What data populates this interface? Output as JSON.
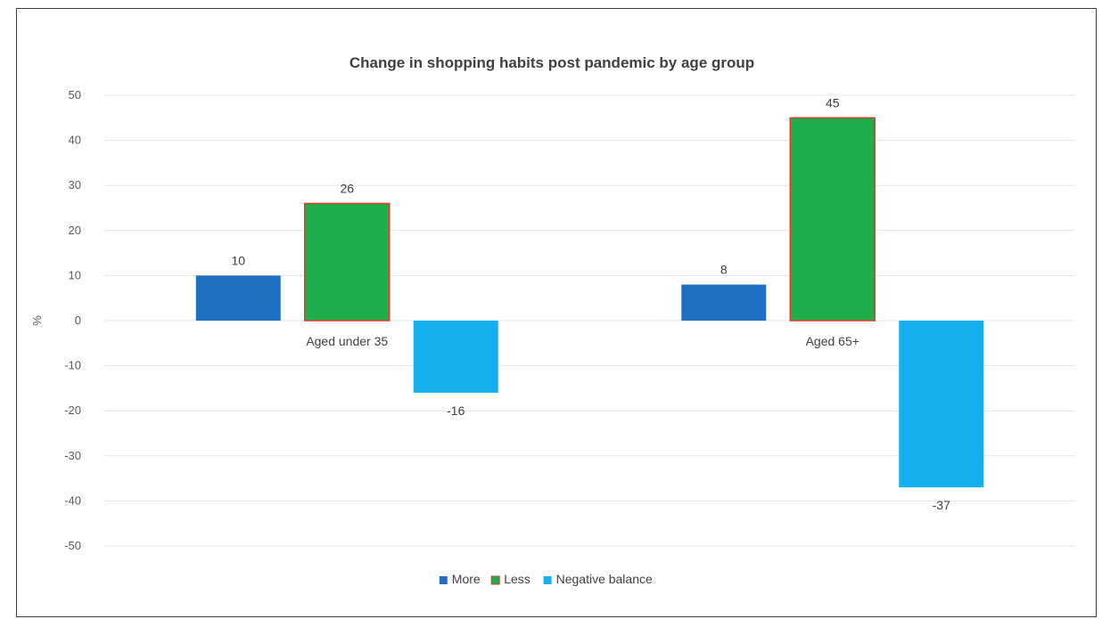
{
  "chart_data": {
    "type": "bar",
    "title": "Change in shopping habits post pandemic by age group",
    "xlabel": "",
    "ylabel": "%",
    "ylim": [
      -50,
      50
    ],
    "yticks": [
      50,
      40,
      30,
      20,
      10,
      0,
      -10,
      -20,
      -30,
      -40,
      -50
    ],
    "grid": true,
    "legend_position": "bottom",
    "categories": [
      "Aged under 35",
      "Aged 65+"
    ],
    "series": [
      {
        "name": "More",
        "values": [
          10,
          8
        ],
        "color": "#1f6fc5"
      },
      {
        "name": "Less",
        "values": [
          26,
          45
        ],
        "color": "#1fae4a",
        "border_color": "#e03a2a"
      },
      {
        "name": "Negative balance",
        "values": [
          -16,
          -37
        ],
        "color": "#14b0ee"
      }
    ]
  }
}
